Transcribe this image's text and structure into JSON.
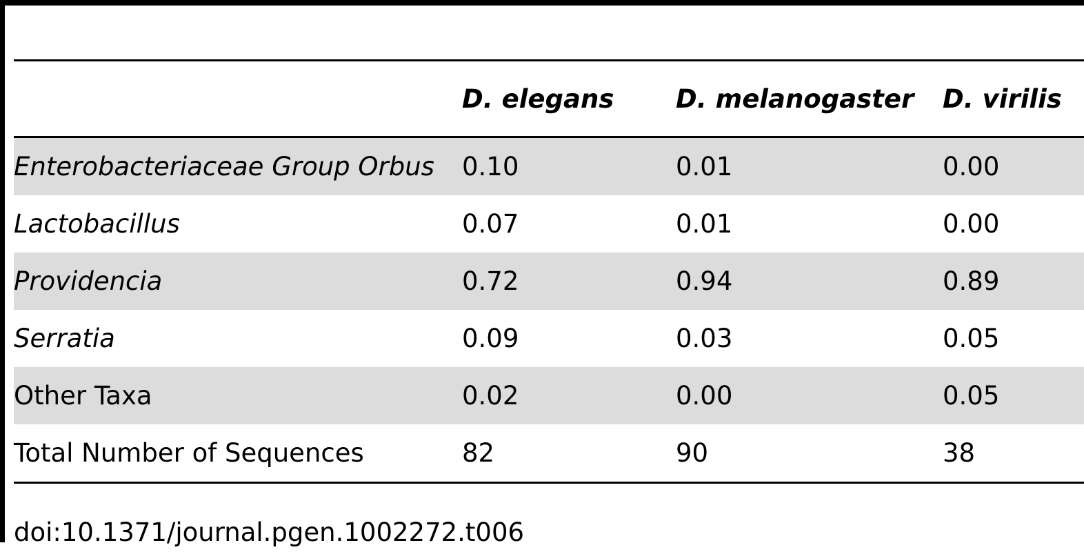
{
  "table": {
    "headers": [
      "",
      "D. elegans",
      "D. melanogaster",
      "D. virilis"
    ],
    "rows": [
      {
        "label": "Enterobacteriaceae Group Orbus",
        "italic": true,
        "values": [
          "0.10",
          "0.01",
          "0.00"
        ]
      },
      {
        "label": "Lactobacillus",
        "italic": true,
        "values": [
          "0.07",
          "0.01",
          "0.00"
        ]
      },
      {
        "label": "Providencia",
        "italic": true,
        "values": [
          "0.72",
          "0.94",
          "0.89"
        ]
      },
      {
        "label": "Serratia",
        "italic": true,
        "values": [
          "0.09",
          "0.03",
          "0.05"
        ]
      },
      {
        "label": "Other Taxa",
        "italic": false,
        "values": [
          "0.02",
          "0.00",
          "0.05"
        ]
      },
      {
        "label": "Total Number of Sequences",
        "italic": false,
        "values": [
          "82",
          "90",
          "38"
        ]
      }
    ]
  },
  "footer": {
    "doi": "doi:10.1371/journal.pgen.1002272.t006"
  },
  "colors": {
    "shaded_row": "#dcdcdc",
    "rule": "#000000"
  }
}
